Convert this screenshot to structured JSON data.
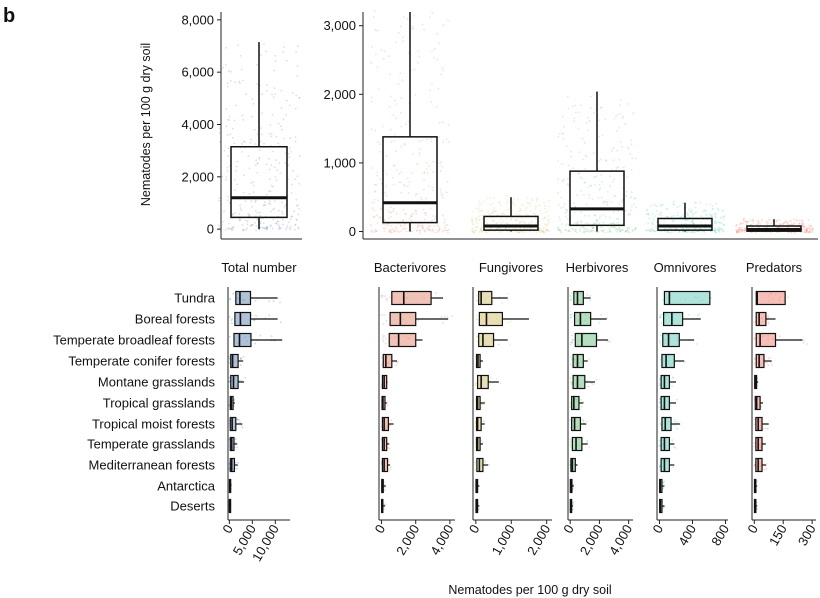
{
  "panel_label": "b",
  "chart_data": [
    {
      "type": "box",
      "ylabel": "Nematodes per 100 g dry soil",
      "categories": [
        "Total number"
      ],
      "ylim": [
        -300,
        8300
      ],
      "yticks": [
        0,
        2000,
        4000,
        6000,
        8000
      ],
      "ytick_labels": [
        "0",
        "2,000",
        "4,000",
        "6,000",
        "8,000"
      ],
      "series": [
        {
          "category": "Total number",
          "color": "#6f8fb8",
          "min": 0,
          "q1": 450,
          "median": 1200,
          "q3": 3150,
          "max": 7150
        }
      ]
    },
    {
      "type": "box",
      "categories": [
        "Bacterivores",
        "Fungivores",
        "Herbivores",
        "Omnivores",
        "Predators"
      ],
      "ylim": [
        -80,
        3200
      ],
      "yticks": [
        0,
        1000,
        2000,
        3000
      ],
      "ytick_labels": [
        "0",
        "1,000",
        "2,000",
        "3,000"
      ],
      "series": [
        {
          "category": "Bacterivores",
          "color": "#e5907a",
          "min": 0,
          "q1": 130,
          "median": 420,
          "q3": 1380,
          "max": 3200
        },
        {
          "category": "Fungivores",
          "color": "#d6c57a",
          "min": 0,
          "q1": 20,
          "median": 80,
          "q3": 220,
          "max": 500
        },
        {
          "category": "Herbivores",
          "color": "#79c58a",
          "min": 0,
          "q1": 90,
          "median": 330,
          "q3": 880,
          "max": 2040
        },
        {
          "category": "Omnivores",
          "color": "#6ecdbd",
          "min": 0,
          "q1": 20,
          "median": 80,
          "q3": 190,
          "max": 420
        },
        {
          "category": "Predators",
          "color": "#ee8a7c",
          "min": 0,
          "q1": 5,
          "median": 30,
          "q3": 80,
          "max": 180
        }
      ]
    },
    {
      "type": "box",
      "orientation": "horizontal",
      "xlabel": "Nematodes per 100 g dry soil",
      "categories": [
        "Tundra",
        "Boreal forests",
        "Temperate broadleaf forests",
        "Temperate conifer forests",
        "Montane grasslands",
        "Tropical grasslands",
        "Tropical moist forests",
        "Temperate grasslands",
        "Mediterranean forests",
        "Antarctica",
        "Deserts"
      ],
      "facets": [
        {
          "name": "Total number",
          "color": "#6f8fb8",
          "xlim": [
            -300,
            13200
          ],
          "xticks": [
            0,
            5000,
            10000
          ],
          "xtick_labels": [
            "0",
            "5,000",
            "10,000"
          ],
          "boxes": [
            {
              "q1": 1400,
              "median": 2300,
              "q3": 4600,
              "max": 10500
            },
            {
              "q1": 1200,
              "median": 2400,
              "q3": 4600,
              "max": 10500
            },
            {
              "q1": 1000,
              "median": 2200,
              "q3": 4700,
              "max": 11500
            },
            {
              "q1": 300,
              "median": 700,
              "q3": 1900,
              "max": 3000
            },
            {
              "q1": 300,
              "median": 900,
              "q3": 1900,
              "max": 3200
            },
            {
              "q1": 200,
              "median": 400,
              "q3": 800,
              "max": 1200
            },
            {
              "q1": 200,
              "median": 600,
              "q3": 1400,
              "max": 2800
            },
            {
              "q1": 200,
              "median": 500,
              "q3": 1000,
              "max": 1700
            },
            {
              "q1": 200,
              "median": 500,
              "q3": 1100,
              "max": 1800
            },
            {
              "q1": 20,
              "median": 80,
              "q3": 200,
              "max": 400
            },
            {
              "q1": 10,
              "median": 40,
              "q3": 120,
              "max": 250
            }
          ]
        },
        {
          "name": "Bacterivores",
          "color": "#e5907a",
          "xlim": [
            -150,
            4300
          ],
          "xticks": [
            0,
            2000,
            4000
          ],
          "xtick_labels": [
            "0",
            "2,000",
            "4,000"
          ],
          "boxes": [
            {
              "q1": 600,
              "median": 1300,
              "q3": 2900,
              "max": 3600
            },
            {
              "q1": 500,
              "median": 1100,
              "q3": 2000,
              "max": 3900
            },
            {
              "q1": 450,
              "median": 1000,
              "q3": 2000,
              "max": 2400
            },
            {
              "q1": 100,
              "median": 250,
              "q3": 600,
              "max": 900
            },
            {
              "q1": 50,
              "median": 150,
              "q3": 300,
              "max": 350
            },
            {
              "q1": 30,
              "median": 80,
              "q3": 200,
              "max": 300
            },
            {
              "q1": 50,
              "median": 150,
              "q3": 400,
              "max": 700
            },
            {
              "q1": 50,
              "median": 150,
              "q3": 300,
              "max": 450
            },
            {
              "q1": 50,
              "median": 150,
              "q3": 350,
              "max": 500
            },
            {
              "q1": 10,
              "median": 40,
              "q3": 100,
              "max": 250
            },
            {
              "q1": 5,
              "median": 20,
              "q3": 60,
              "max": 200
            }
          ]
        },
        {
          "name": "Fungivores",
          "color": "#d6c57a",
          "xlim": [
            -80,
            2150
          ],
          "xticks": [
            0,
            1000,
            2000
          ],
          "xtick_labels": [
            "0",
            "1,000",
            "2,000"
          ],
          "boxes": [
            {
              "q1": 80,
              "median": 150,
              "q3": 450,
              "max": 900
            },
            {
              "q1": 100,
              "median": 300,
              "q3": 750,
              "max": 1500
            },
            {
              "q1": 80,
              "median": 200,
              "q3": 500,
              "max": 900
            },
            {
              "q1": 20,
              "median": 60,
              "q3": 120,
              "max": 200
            },
            {
              "q1": 50,
              "median": 150,
              "q3": 350,
              "max": 650
            },
            {
              "q1": 20,
              "median": 50,
              "q3": 120,
              "max": 250
            },
            {
              "q1": 20,
              "median": 50,
              "q3": 150,
              "max": 250
            },
            {
              "q1": 20,
              "median": 50,
              "q3": 120,
              "max": 200
            },
            {
              "q1": 30,
              "median": 100,
              "q3": 200,
              "max": 350
            },
            {
              "q1": 5,
              "median": 20,
              "q3": 50,
              "max": 100
            },
            {
              "q1": 5,
              "median": 20,
              "q3": 50,
              "max": 100
            }
          ]
        },
        {
          "name": "Herbivores",
          "color": "#79c58a",
          "xlim": [
            -150,
            4300
          ],
          "xticks": [
            0,
            2000,
            4000
          ],
          "xtick_labels": [
            "0",
            "2,000",
            "4,000"
          ],
          "boxes": [
            {
              "q1": 250,
              "median": 500,
              "q3": 900,
              "max": 1400
            },
            {
              "q1": 300,
              "median": 700,
              "q3": 1400,
              "max": 2500
            },
            {
              "q1": 350,
              "median": 800,
              "q3": 1800,
              "max": 2600
            },
            {
              "q1": 200,
              "median": 500,
              "q3": 900,
              "max": 1200
            },
            {
              "q1": 200,
              "median": 500,
              "q3": 1000,
              "max": 1700
            },
            {
              "q1": 100,
              "median": 250,
              "q3": 600,
              "max": 900
            },
            {
              "q1": 100,
              "median": 300,
              "q3": 700,
              "max": 1100
            },
            {
              "q1": 150,
              "median": 400,
              "q3": 800,
              "max": 1200
            },
            {
              "q1": 50,
              "median": 150,
              "q3": 350,
              "max": 500
            },
            {
              "q1": 10,
              "median": 40,
              "q3": 120,
              "max": 250
            },
            {
              "q1": 10,
              "median": 40,
              "q3": 100,
              "max": 200
            }
          ]
        },
        {
          "name": "Omnivores",
          "color": "#6ecdbd",
          "xlim": [
            -30,
            830
          ],
          "xticks": [
            0,
            400,
            800
          ],
          "xtick_labels": [
            "0",
            "400",
            "800"
          ],
          "boxes": [
            {
              "q1": 60,
              "median": 120,
              "q3": 610,
              "max": 610
            },
            {
              "q1": 50,
              "median": 150,
              "q3": 280,
              "max": 500
            },
            {
              "q1": 40,
              "median": 110,
              "q3": 240,
              "max": 420
            },
            {
              "q1": 30,
              "median": 80,
              "q3": 180,
              "max": 300
            },
            {
              "q1": 20,
              "median": 60,
              "q3": 120,
              "max": 200
            },
            {
              "q1": 20,
              "median": 60,
              "q3": 120,
              "max": 200
            },
            {
              "q1": 30,
              "median": 70,
              "q3": 140,
              "max": 250
            },
            {
              "q1": 20,
              "median": 60,
              "q3": 120,
              "max": 180
            },
            {
              "q1": 20,
              "median": 60,
              "q3": 120,
              "max": 180
            },
            {
              "q1": 2,
              "median": 10,
              "q3": 30,
              "max": 60
            },
            {
              "q1": 2,
              "median": 10,
              "q3": 30,
              "max": 60
            }
          ]
        },
        {
          "name": "Predators",
          "color": "#ee8a7c",
          "xlim": [
            -12,
            320
          ],
          "xticks": [
            0,
            150,
            300
          ],
          "xtick_labels": [
            "0",
            "150",
            "300"
          ],
          "boxes": [
            {
              "q1": 10,
              "median": 15,
              "q3": 160,
              "max": 160
            },
            {
              "q1": 10,
              "median": 25,
              "q3": 60,
              "max": 110
            },
            {
              "q1": 10,
              "median": 30,
              "q3": 110,
              "max": 250
            },
            {
              "q1": 10,
              "median": 25,
              "q3": 50,
              "max": 90
            },
            {
              "q1": 2,
              "median": 6,
              "q3": 12,
              "max": 20
            },
            {
              "q1": 5,
              "median": 12,
              "q3": 30,
              "max": 45
            },
            {
              "q1": 8,
              "median": 20,
              "q3": 40,
              "max": 75
            },
            {
              "q1": 8,
              "median": 20,
              "q3": 40,
              "max": 60
            },
            {
              "q1": 8,
              "median": 20,
              "q3": 40,
              "max": 60
            },
            {
              "q1": 1,
              "median": 3,
              "q3": 8,
              "max": 15
            },
            {
              "q1": 1,
              "median": 3,
              "q3": 8,
              "max": 15
            }
          ]
        }
      ]
    }
  ]
}
